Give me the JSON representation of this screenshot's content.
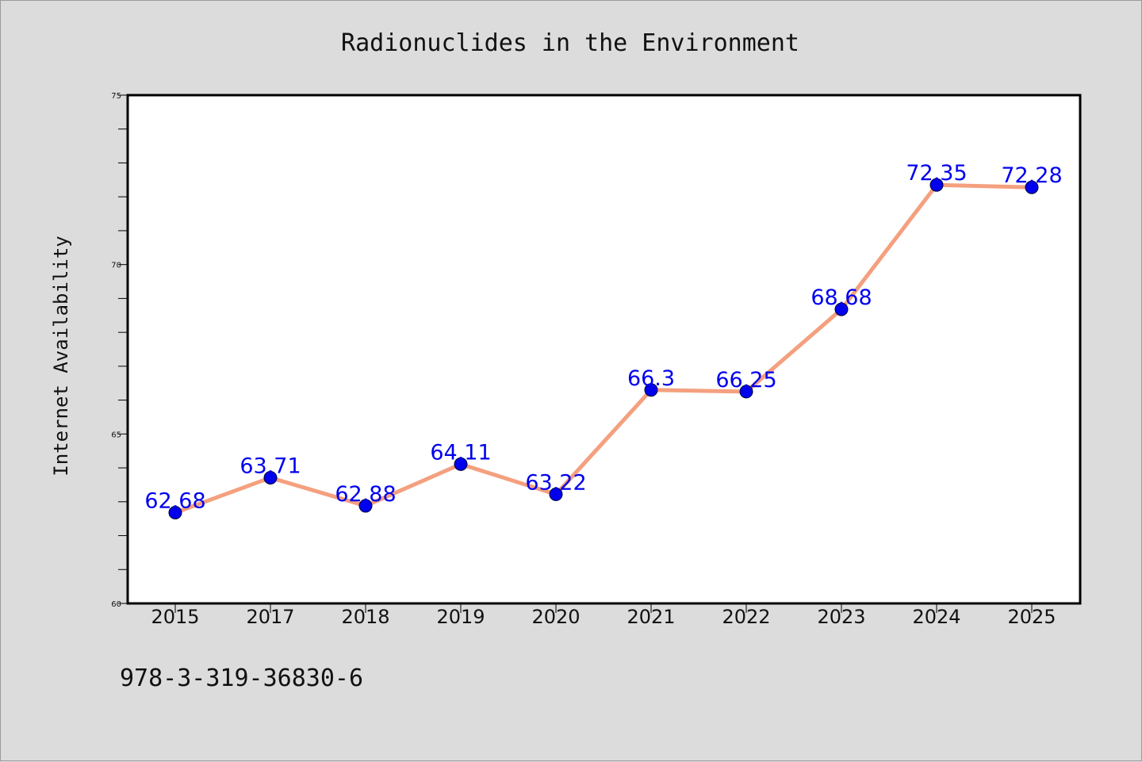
{
  "chart_data": {
    "type": "line",
    "title": "Radionuclides in the Environment",
    "xlabel": "",
    "ylabel": "Internet Availability",
    "categories": [
      "2015",
      "2017",
      "2018",
      "2019",
      "2020",
      "2021",
      "2022",
      "2023",
      "2024",
      "2025"
    ],
    "values": [
      62.68,
      63.71,
      62.88,
      64.11,
      63.22,
      66.3,
      66.25,
      68.68,
      72.35,
      72.28
    ],
    "data_labels": [
      "62.68",
      "63.71",
      "62.88",
      "64.11",
      "63.22",
      "66.3",
      "66.25",
      "68.68",
      "72.35",
      "72.28"
    ],
    "ylim": [
      60,
      75
    ],
    "yticks": [
      60,
      65,
      70,
      75
    ],
    "ytick_labels": [
      "60",
      "65",
      "70",
      "75"
    ],
    "grid": false,
    "line_color": "#f4a07f",
    "marker_color": "#0000ee",
    "label_color": "#0000ee"
  },
  "footer": {
    "text": "978-3-319-36830-6"
  }
}
